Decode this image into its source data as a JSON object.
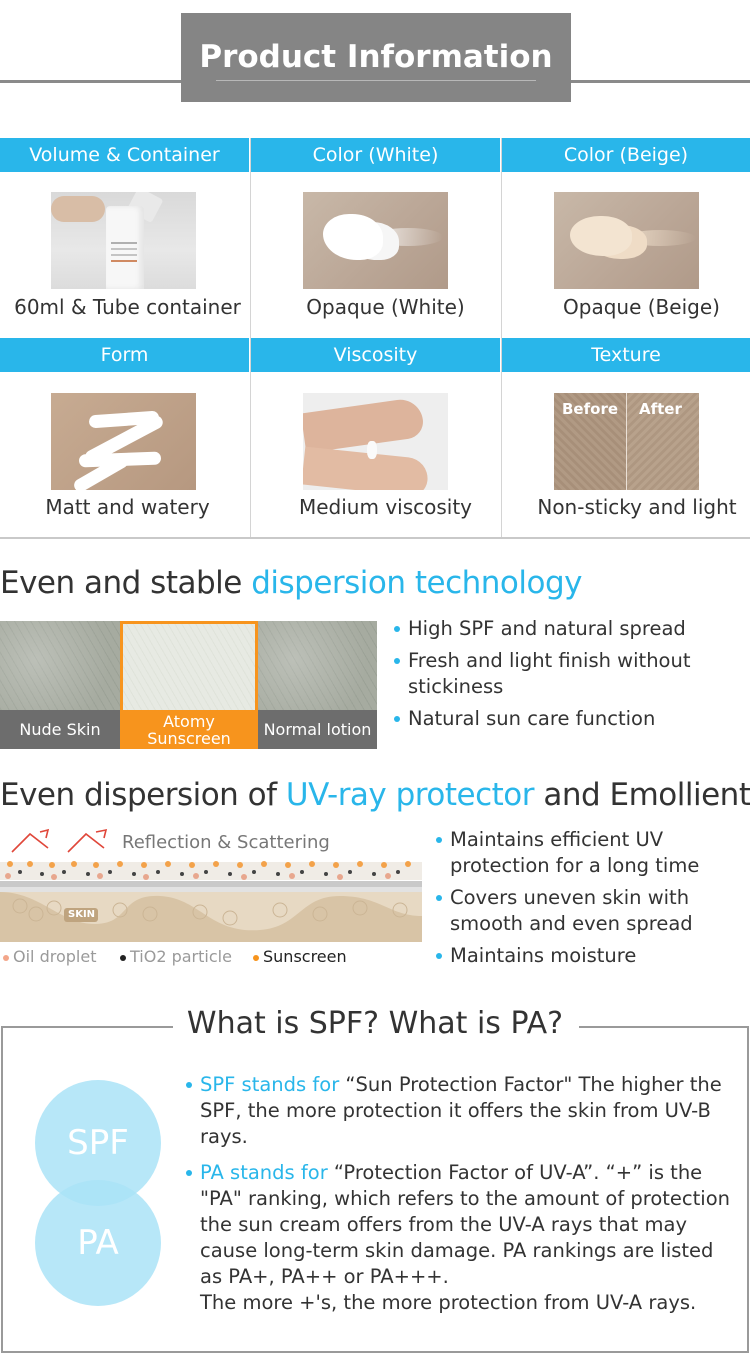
{
  "header": {
    "title": "Product Information"
  },
  "info_grid": {
    "row1": [
      {
        "head": "Volume & Container",
        "caption": "60ml & Tube container",
        "image": "tube-photo"
      },
      {
        "head": "Color (White)",
        "caption": "Opaque (White)",
        "image": "white-swatch-photo"
      },
      {
        "head": "Color (Beige)",
        "caption": "Opaque (Beige)",
        "image": "beige-swatch-photo"
      }
    ],
    "row2": [
      {
        "head": "Form",
        "caption": "Matt and watery",
        "image": "zigzag-cream-photo"
      },
      {
        "head": "Viscosity",
        "caption": "Medium viscosity",
        "image": "finger-cream-photo"
      },
      {
        "head": "Texture",
        "caption": "Non-sticky and light",
        "image": "before-after-photo",
        "before": "Before",
        "after": "After"
      }
    ]
  },
  "dispersion": {
    "title_plain": "Even and stable ",
    "title_blue": "dispersion technology",
    "panels": [
      "Nude Skin",
      "Atomy Sunscreen",
      "Normal lotion"
    ],
    "panel_lines": {
      "atomy_l1": "Atomy",
      "atomy_l2": "Sunscreen"
    },
    "bullets": {
      "b1": "High SPF and natural spread",
      "b2": "Fresh and light finish without stickiness",
      "b3": "Natural sun care function"
    }
  },
  "uv": {
    "title_plain1": "Even dispersion of ",
    "title_blue": "UV-ray protector",
    "title_plain2": " and Emollient",
    "diagram_label": "Reflection & Scattering",
    "skin_label": "SKIN",
    "legend": [
      "Oil droplet",
      "TiO2 particle",
      "Sunscreen"
    ],
    "bullets": {
      "b1": "Maintains efficient UV protection for a long time",
      "b2": "Covers uneven skin with smooth and even spread",
      "b3": "Maintains moisture"
    }
  },
  "spf": {
    "title": "What is SPF? What is PA?",
    "circle1": "SPF",
    "circle2": "PA",
    "p1_blue": "SPF stands for",
    "p1_text": " “Sun Protection Factor\" The higher the SPF, the more protection it offers the skin from UV-B rays.",
    "p2_blue": "PA stands for",
    "p2_text": " “Protection Factor of UV-A”. “+” is the \"PA\" ranking, which refers to the amount of protection the sun cream offers from the UV-A rays that may cause long-term skin damage. PA rankings are listed as PA+, PA++ or PA+++.",
    "p2_last": "The more +'s, the more protection from UV-A rays."
  },
  "colors": {
    "accent": "#29b6ea",
    "header_gray": "#858585",
    "orange": "#f7941d",
    "panel_gray": "#6d6d6d",
    "circle": "#aae3f7"
  }
}
